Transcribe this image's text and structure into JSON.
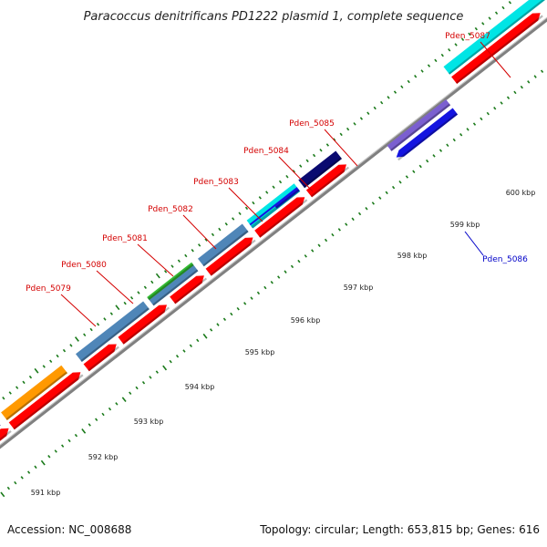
{
  "title": "Paracoccus denitrificans PD1222 plasmid 1, complete sequence",
  "footer": {
    "accession": "Accession: NC_008688",
    "summary": "Topology: circular; Length: 653,815 bp; Genes: 616"
  },
  "ticks": {
    "major_labels": [
      "591 kbp",
      "592 kbp",
      "593 kbp",
      "594 kbp",
      "595 kbp",
      "596 kbp",
      "597 kbp",
      "598 kbp",
      "599 kbp",
      "600 kbp"
    ]
  },
  "genes": {
    "forward_labeled": [
      "Pden_5079",
      "Pden_5080",
      "Pden_5081",
      "Pden_5082",
      "Pden_5083",
      "Pden_5084",
      "Pden_5085",
      "Pden_5087"
    ],
    "reverse_labeled": [
      "Pden_5086"
    ]
  },
  "colors": {
    "cds": "#ff0000",
    "backbone": "#808080",
    "tick": "#1a7a1a",
    "label_forward": "#d40000",
    "label_reverse": "#0000c8",
    "cog_cyan": "#00e5e5",
    "cog_steelblue": "#4f86b8",
    "cog_green": "#33bb33",
    "cog_orange": "#ff9900",
    "cog_purple": "#7b5fd0",
    "cog_navy": "#0a0a70",
    "cog_blue": "#1414e0"
  }
}
